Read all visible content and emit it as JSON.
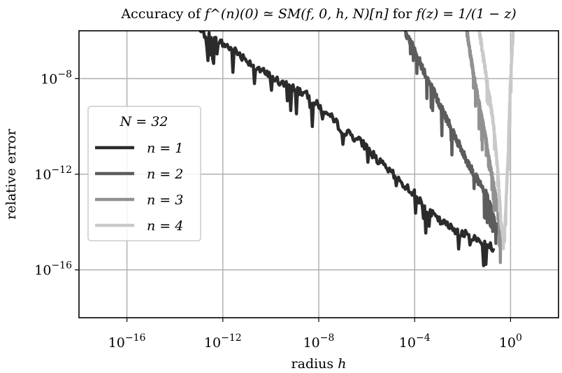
{
  "chart_data": {
    "type": "line",
    "title_prefix": "Accuracy of ",
    "title_math": "f^(n)(0) ≃ SM(f, 0, h, N)[n]",
    "title_connector": " for ",
    "title_math2": "f(z) = 1/(1 − z)",
    "xlabel_text": "radius ",
    "xlabel_math": "h",
    "ylabel": "relative error",
    "x_scale": "log",
    "y_scale": "log",
    "xlim": [
      1e-18,
      100.0
    ],
    "ylim": [
      1e-18,
      1e-06
    ],
    "x_ticks": [
      {
        "value": 1e-16,
        "base": "10",
        "exp": "−16"
      },
      {
        "value": 1e-12,
        "base": "10",
        "exp": "−12"
      },
      {
        "value": 1e-08,
        "base": "10",
        "exp": "−8"
      },
      {
        "value": 0.0001,
        "base": "10",
        "exp": "−4"
      },
      {
        "value": 1,
        "base": "10",
        "exp": "0"
      }
    ],
    "y_ticks": [
      {
        "value": 1e-08,
        "base": "10",
        "exp": "−8"
      },
      {
        "value": 1e-12,
        "base": "10",
        "exp": "−12"
      },
      {
        "value": 1e-16,
        "base": "10",
        "exp": "−16"
      }
    ],
    "grid": true,
    "legend": {
      "position": "center-left",
      "title_math": "N = 32",
      "entries": [
        "n = 1",
        "n = 2",
        "n = 3",
        "n = 4"
      ]
    },
    "series": [
      {
        "name": "n = 1",
        "color": "#2b2b2b",
        "x": [
          1e-13,
          3.16e-12,
          1e-11,
          3.16e-11,
          1e-10,
          3.16e-10,
          1e-09,
          3.16e-09,
          1e-08,
          3.16e-08,
          1e-07,
          3.16e-07,
          1e-06,
          3.16e-06,
          1e-05,
          3.16e-05,
          0.0001,
          0.000316,
          0.001,
          0.00316,
          0.01,
          0.0316,
          0.1,
          0.2
        ],
        "y": [
          1e-06,
          1.5e-07,
          6e-08,
          2.5e-08,
          1.2e-08,
          6e-09,
          4e-09,
          2e-09,
          7e-10,
          2.5e-10,
          7e-11,
          3.5e-11,
          1.4e-11,
          3.5e-12,
          1.2e-12,
          4e-13,
          1.5e-13,
          3.5e-14,
          1.2e-14,
          6e-15,
          3.5e-15,
          2e-15,
          1.2e-15,
          8e-16
        ]
      },
      {
        "name": "n = 2",
        "color": "#5c5c5c",
        "x": [
          4e-05,
          0.0001,
          0.000316,
          0.001,
          0.00316,
          0.01,
          0.0316,
          0.1,
          0.2,
          0.3
        ],
        "y": [
          1e-06,
          1.5e-07,
          1.2e-08,
          1e-09,
          1e-10,
          8e-12,
          9e-13,
          1.3e-13,
          1.5e-14,
          4e-15
        ]
      },
      {
        "name": "n = 3",
        "color": "#919191",
        "x": [
          0.015,
          0.0316,
          0.1,
          0.2,
          0.3,
          0.4
        ],
        "y": [
          1e-06,
          8e-09,
          2e-11,
          3e-13,
          3e-14,
          1e-15
        ]
      },
      {
        "name": "n = 4",
        "color": "#c9c9c9",
        "x": [
          0.05,
          0.1,
          0.2,
          0.3,
          0.4,
          0.5,
          0.6,
          0.8,
          1,
          1.3
        ],
        "y": [
          1e-06,
          1e-08,
          1e-10,
          1e-12,
          1e-14,
          2e-15,
          1e-14,
          1e-11,
          1e-08,
          1e-06
        ]
      }
    ]
  }
}
